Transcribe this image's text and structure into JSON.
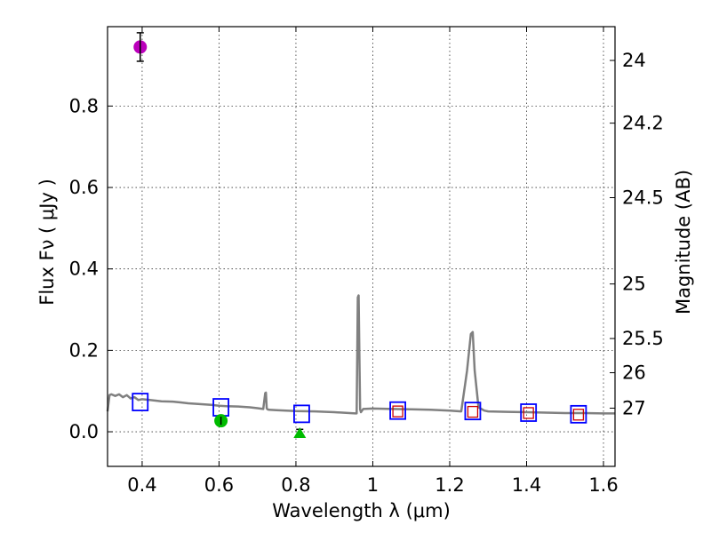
{
  "chart_data": {
    "type": "scatter",
    "title": "",
    "xlabel": "Wavelength  λ (μm)",
    "ylabel": "Flux  Fν  ( μJy )",
    "y2label": "Magnitude (AB)",
    "xlim": [
      0.31,
      1.63
    ],
    "ylim": [
      -0.085,
      0.995
    ],
    "grid": true,
    "x_ticks": [
      0.4,
      0.6,
      0.8,
      1.0,
      1.2,
      1.4,
      1.6
    ],
    "x_tick_labels": [
      "0.4",
      "0.6",
      "0.8",
      "1",
      "1.2",
      "1.4",
      "1.6"
    ],
    "y_ticks": [
      0.0,
      0.2,
      0.4,
      0.6,
      0.8
    ],
    "y_tick_labels": [
      "0.0",
      "0.2",
      "0.4",
      "0.6",
      "0.8"
    ],
    "y2_ticks": [
      {
        "label": "24",
        "flux": 0.912
      },
      {
        "label": "24.2",
        "flux": 0.758
      },
      {
        "label": "24.5",
        "flux": 0.575
      },
      {
        "label": "25",
        "flux": 0.363
      },
      {
        "label": "25.5",
        "flux": 0.229
      },
      {
        "label": "26",
        "flux": 0.145
      },
      {
        "label": "27",
        "flux": 0.058
      }
    ],
    "series": [
      {
        "name": "model spectrum",
        "kind": "line",
        "color": "#808080",
        "x": [
          0.31,
          0.315,
          0.32,
          0.33,
          0.34,
          0.35,
          0.36,
          0.37,
          0.38,
          0.39,
          0.4,
          0.42,
          0.45,
          0.48,
          0.5,
          0.52,
          0.55,
          0.58,
          0.6,
          0.62,
          0.65,
          0.68,
          0.7,
          0.715,
          0.72,
          0.722,
          0.724,
          0.726,
          0.73,
          0.75,
          0.8,
          0.85,
          0.9,
          0.94,
          0.955,
          0.958,
          0.961,
          0.963,
          0.965,
          0.967,
          0.969,
          0.972,
          0.975,
          1.0,
          1.05,
          1.1,
          1.15,
          1.2,
          1.23,
          1.245,
          1.255,
          1.26,
          1.265,
          1.275,
          1.29,
          1.3,
          1.35,
          1.4,
          1.45,
          1.5,
          1.55,
          1.6,
          1.63
        ],
        "y": [
          0.05,
          0.09,
          0.092,
          0.088,
          0.092,
          0.085,
          0.09,
          0.082,
          0.085,
          0.078,
          0.08,
          0.078,
          0.075,
          0.074,
          0.072,
          0.07,
          0.068,
          0.066,
          0.064,
          0.063,
          0.062,
          0.06,
          0.058,
          0.056,
          0.095,
          0.096,
          0.058,
          0.055,
          0.054,
          0.053,
          0.051,
          0.05,
          0.048,
          0.046,
          0.045,
          0.045,
          0.33,
          0.335,
          0.2,
          0.055,
          0.048,
          0.052,
          0.056,
          0.057,
          0.056,
          0.055,
          0.054,
          0.052,
          0.05,
          0.15,
          0.24,
          0.245,
          0.15,
          0.06,
          0.052,
          0.05,
          0.049,
          0.048,
          0.047,
          0.046,
          0.046,
          0.045,
          0.045
        ]
      },
      {
        "name": "model magnitudes",
        "kind": "open-square",
        "color": "#0000ff",
        "x": [
          0.395,
          0.605,
          0.815,
          1.065,
          1.26,
          1.405,
          1.535
        ],
        "y": [
          0.073,
          0.06,
          0.044,
          0.052,
          0.051,
          0.047,
          0.043
        ]
      },
      {
        "name": "observed inner squares",
        "kind": "open-square-small",
        "color": "#cc0000",
        "x": [
          1.065,
          1.26,
          1.405,
          1.535
        ],
        "y": [
          0.05,
          0.049,
          0.046,
          0.042
        ]
      },
      {
        "name": "magenta photometry",
        "kind": "circle",
        "color": "#bb00bb",
        "x": [
          0.395
        ],
        "y": [
          0.945
        ],
        "yerr": [
          0.035
        ]
      },
      {
        "name": "green photometry",
        "kind": "circle",
        "color": "#00bb00",
        "x": [
          0.605
        ],
        "y": [
          0.027
        ],
        "yerr": [
          0.01
        ]
      },
      {
        "name": "green limit",
        "kind": "triangle",
        "color": "#00bb00",
        "x": [
          0.81
        ],
        "y": [
          -0.002
        ],
        "yerr": [
          0.008
        ]
      }
    ]
  }
}
